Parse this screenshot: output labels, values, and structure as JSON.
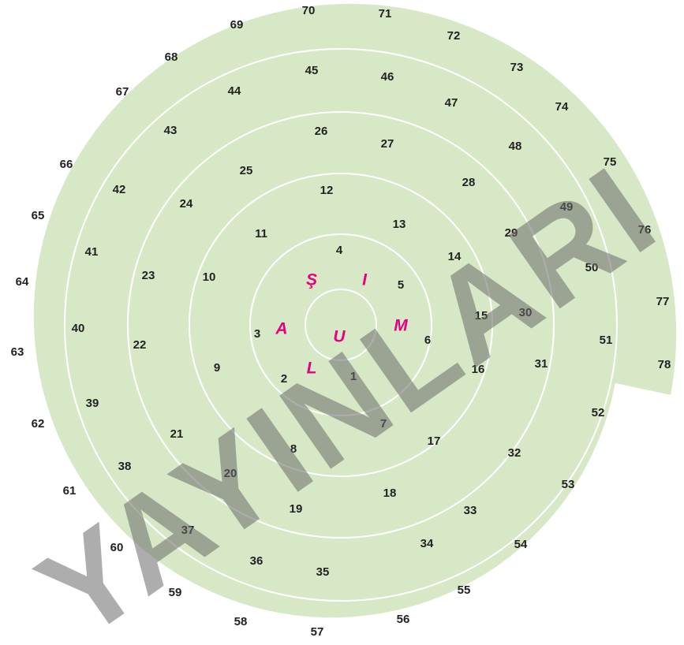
{
  "pieces": [
    "1",
    "2",
    "3",
    "4",
    "5",
    "6",
    "7",
    "8",
    "9",
    "10",
    "11",
    "12",
    "13",
    "14",
    "15",
    "16",
    "17",
    "18",
    "19",
    "20",
    "21",
    "22",
    "23",
    "24",
    "25",
    "26",
    "27",
    "28",
    "29",
    "30",
    "31",
    "32",
    "33",
    "34",
    "35",
    "36",
    "37",
    "38",
    "39",
    "40",
    "41",
    "42",
    "43",
    "44",
    "45",
    "46",
    "47",
    "48",
    "49",
    "50",
    "51",
    "52",
    "53",
    "54",
    "55",
    "56",
    "57",
    "58",
    "59",
    "60",
    "61",
    "62",
    "63",
    "64",
    "65",
    "66",
    "67",
    "68",
    "69",
    "70",
    "71",
    "72",
    "73",
    "74",
    "75",
    "76",
    "77",
    "78"
  ],
  "letters": [
    "Ş",
    "I",
    "A",
    "U",
    "M",
    "L"
  ],
  "watermark": "YAYINLARI"
}
